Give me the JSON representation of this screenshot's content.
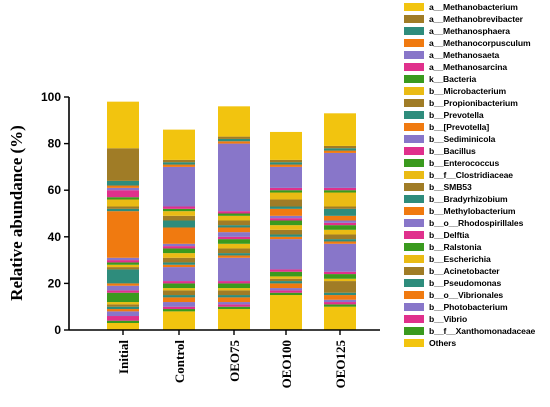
{
  "chart_data": {
    "type": "bar",
    "stacked": true,
    "ylabel": "Relative abundance (%)",
    "ylim": [
      0,
      100
    ],
    "yticks": [
      "0",
      "20",
      "40",
      "60",
      "80",
      "100"
    ],
    "categories": [
      "Initial",
      "Control",
      "OEO75",
      "OEO100",
      "OEO125"
    ],
    "legend_position": "right",
    "series": [
      {
        "name": "Others",
        "color": "#F2C40F",
        "values": [
          3,
          8,
          9,
          15,
          10
        ]
      },
      {
        "name": "b__f__Xanthomonadaceae",
        "color": "#3A9A1E",
        "values": [
          1,
          1,
          1,
          1,
          1
        ]
      },
      {
        "name": "b__Vibrio",
        "color": "#E0308C",
        "values": [
          2,
          1,
          1,
          1,
          1
        ]
      },
      {
        "name": "b__Photobacterium",
        "color": "#8876C9",
        "values": [
          2,
          2,
          1,
          1,
          1
        ]
      },
      {
        "name": "b__o__Vibrionales",
        "color": "#F07A10",
        "values": [
          1,
          2,
          2,
          2,
          2
        ]
      },
      {
        "name": "b__Pseudomonas",
        "color": "#2E8C7C",
        "values": [
          1,
          1,
          1,
          1,
          1
        ]
      },
      {
        "name": "b__Acinetobacter",
        "color": "#A07C26",
        "values": [
          1,
          2,
          2,
          1,
          5
        ]
      },
      {
        "name": "b__Escherichia",
        "color": "#EABB14",
        "values": [
          1,
          1,
          1,
          1,
          1
        ]
      },
      {
        "name": "b__Ralstonia",
        "color": "#3A9A1E",
        "values": [
          4,
          2,
          2,
          2,
          2
        ]
      },
      {
        "name": "b__Delftia",
        "color": "#E0308C",
        "values": [
          1,
          1,
          1,
          1,
          1
        ]
      },
      {
        "name": "b__o__Rhodospirillales",
        "color": "#8876C9",
        "values": [
          2,
          6,
          10,
          13,
          12
        ]
      },
      {
        "name": "b__Methylobacterium",
        "color": "#F07A10",
        "values": [
          1,
          1,
          1,
          1,
          1
        ]
      },
      {
        "name": "b__Bradyrhizobium",
        "color": "#2E8C7C",
        "values": [
          6,
          1,
          1,
          1,
          1
        ]
      },
      {
        "name": "b__SMB53",
        "color": "#A07C26",
        "values": [
          1,
          2,
          2,
          2,
          2
        ]
      },
      {
        "name": "b__f__Clostridiaceae",
        "color": "#EABB14",
        "values": [
          1,
          2,
          2,
          2,
          2
        ]
      },
      {
        "name": "b__Enterococcus",
        "color": "#3A9A1E",
        "values": [
          1,
          2,
          2,
          2,
          2
        ]
      },
      {
        "name": "b__Bacillus",
        "color": "#E0308C",
        "values": [
          1,
          1,
          1,
          1,
          1
        ]
      },
      {
        "name": "b__Sediminicola",
        "color": "#8876C9",
        "values": [
          1,
          1,
          2,
          1,
          1
        ]
      },
      {
        "name": "b__[Prevotella]",
        "color": "#F07A10",
        "values": [
          20,
          7,
          2,
          3,
          2
        ]
      },
      {
        "name": "b__Prevotella",
        "color": "#2E8C7C",
        "values": [
          1,
          3,
          1,
          1,
          3
        ]
      },
      {
        "name": "b__Propionibacterium",
        "color": "#A07C26",
        "values": [
          1,
          2,
          2,
          3,
          1
        ]
      },
      {
        "name": "b__Microbacterium",
        "color": "#EABB14",
        "values": [
          3,
          2,
          2,
          3,
          6
        ]
      },
      {
        "name": "k__Bacteria",
        "color": "#3A9A1E",
        "values": [
          1,
          1,
          1,
          1,
          1
        ]
      },
      {
        "name": "a__Methanosarcina",
        "color": "#E0308C",
        "values": [
          3,
          1,
          1,
          1,
          1
        ]
      },
      {
        "name": "a__Methanosaeta",
        "color": "#8876C9",
        "values": [
          1,
          17,
          29,
          9,
          15
        ]
      },
      {
        "name": "a__Methanocorpusculum",
        "color": "#F07A10",
        "values": [
          1,
          1,
          1,
          1,
          1
        ]
      },
      {
        "name": "a__Methanosphaera",
        "color": "#2E8C7C",
        "values": [
          2,
          1,
          1,
          1,
          1
        ]
      },
      {
        "name": "a__Methanobrevibacter",
        "color": "#A07C26",
        "values": [
          14,
          1,
          1,
          1,
          1
        ]
      },
      {
        "name": "a__Methanobacterium",
        "color": "#F2C40F",
        "values": [
          20,
          13,
          13,
          12,
          14
        ]
      }
    ]
  }
}
